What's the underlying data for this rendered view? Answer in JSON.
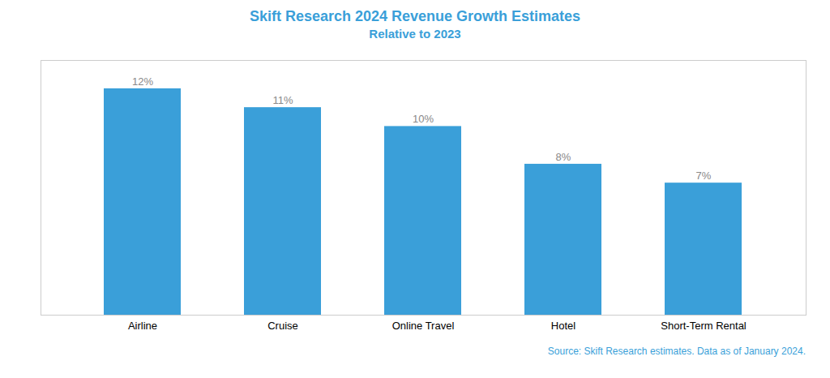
{
  "chart_data": {
    "type": "bar",
    "title": "Skift Research 2024 Revenue Growth Estimates",
    "subtitle": "Relative to 2023",
    "categories": [
      "Airline",
      "Cruise",
      "Online Travel",
      "Hotel",
      "Short-Term Rental"
    ],
    "values": [
      12,
      11,
      10,
      8,
      7
    ],
    "value_labels": [
      "12%",
      "11%",
      "10%",
      "8%",
      "7%"
    ],
    "data_labels": true,
    "color": "#3A9FD9",
    "ylim": [
      0,
      13.5
    ],
    "grid": false,
    "tick_labels": "x",
    "annotations": [
      "Source: Skift Research estimates. Data as of January 2024."
    ]
  }
}
